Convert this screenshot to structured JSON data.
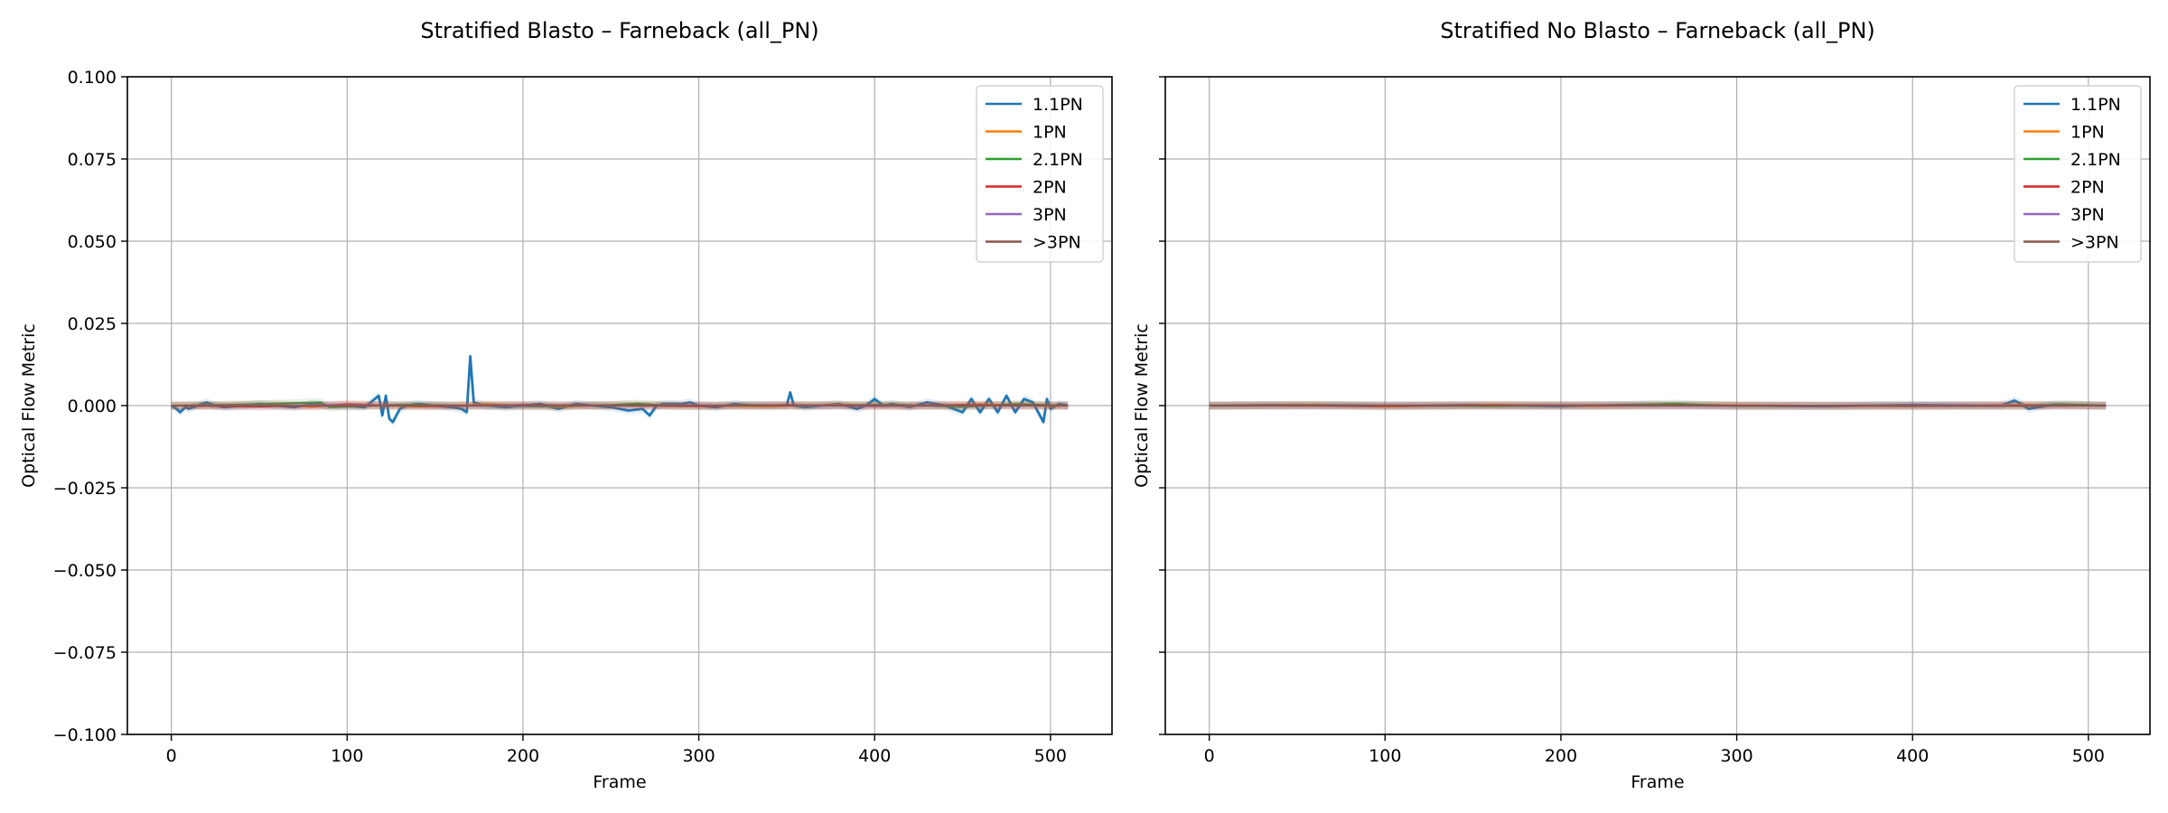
{
  "chart_data": [
    {
      "type": "line",
      "title": "Stratified Blasto – Farneback (all_PN)",
      "xlabel": "Frame",
      "ylabel": "Optical Flow Metric",
      "xlim": [
        -25,
        535
      ],
      "ylim": [
        -0.1,
        0.1
      ],
      "xticks": [
        0,
        100,
        200,
        300,
        400,
        500
      ],
      "xtick_labels": [
        "0",
        "100",
        "200",
        "300",
        "400",
        "500"
      ],
      "yticks": [
        -0.1,
        -0.075,
        -0.05,
        -0.025,
        0.0,
        0.025,
        0.05,
        0.075,
        0.1
      ],
      "ytick_labels": [
        "−0.100",
        "−0.075",
        "−0.050",
        "−0.025",
        "0.000",
        "0.025",
        "0.050",
        "0.075",
        "0.100"
      ],
      "grid": true,
      "legend_position": "top-right",
      "series": [
        {
          "name": "1.1PN",
          "color": "#1f77b4",
          "x": [
            0,
            3,
            5,
            8,
            10,
            15,
            20,
            25,
            30,
            40,
            50,
            60,
            70,
            80,
            90,
            100,
            110,
            118,
            120,
            122,
            124,
            126,
            128,
            130,
            134,
            140,
            150,
            160,
            165,
            168,
            170,
            172,
            175,
            180,
            190,
            200,
            210,
            220,
            230,
            240,
            250,
            260,
            268,
            272,
            276,
            280,
            290,
            295,
            300,
            310,
            320,
            330,
            340,
            350,
            352,
            354,
            360,
            370,
            380,
            390,
            395,
            400,
            405,
            410,
            420,
            430,
            440,
            450,
            455,
            460,
            465,
            470,
            475,
            480,
            485,
            490,
            494,
            496,
            498,
            500,
            505,
            510
          ],
          "y": [
            0.0,
            -0.001,
            -0.002,
            -0.0005,
            -0.001,
            0.0,
            0.001,
            0.0,
            -0.0005,
            0.0,
            0.0005,
            0.0,
            -0.0005,
            0.0005,
            0.0,
            0.0,
            -0.0005,
            0.003,
            -0.003,
            0.003,
            -0.004,
            -0.005,
            -0.003,
            -0.001,
            0.0,
            0.0005,
            0.0,
            -0.0005,
            -0.001,
            -0.002,
            0.015,
            0.001,
            0.0005,
            0.0,
            -0.0005,
            0.0,
            0.0005,
            -0.001,
            0.0005,
            0.0,
            -0.0005,
            -0.0015,
            -0.001,
            -0.003,
            0.0,
            0.0005,
            0.0005,
            0.001,
            0.0,
            -0.0005,
            0.0005,
            0.0,
            0.0,
            0.0,
            0.004,
            0.0,
            -0.0005,
            0.0,
            0.0005,
            -0.001,
            0.0,
            0.002,
            0.0,
            0.0005,
            -0.0005,
            0.001,
            0.0,
            -0.002,
            0.002,
            -0.002,
            0.002,
            -0.002,
            0.003,
            -0.002,
            0.002,
            0.001,
            -0.003,
            -0.005,
            0.002,
            -0.001,
            0.0005,
            0.0
          ]
        },
        {
          "name": "1PN",
          "color": "#ff7f0e",
          "x": [
            0,
            60,
            80,
            100,
            140,
            180,
            220,
            260,
            300,
            340,
            380,
            420,
            460,
            500,
            510
          ],
          "y": [
            0.0,
            0.0005,
            -0.0005,
            0.0005,
            -0.0003,
            0.0004,
            -0.0004,
            0.0003,
            0.0,
            -0.0003,
            0.0003,
            -0.0002,
            0.0004,
            -0.0002,
            0.0
          ]
        },
        {
          "name": "2.1PN",
          "color": "#2ca02c",
          "x": [
            0,
            40,
            85,
            90,
            130,
            170,
            210,
            250,
            265,
            290,
            330,
            370,
            410,
            450,
            480,
            510
          ],
          "y": [
            0.0,
            0.0003,
            0.001,
            -0.0005,
            0.0003,
            0.0,
            -0.0003,
            0.0002,
            0.0006,
            -0.0002,
            0.0002,
            0.0,
            0.0003,
            -0.0004,
            0.0005,
            0.0
          ]
        },
        {
          "name": "2PN",
          "color": "#d62728",
          "x": [
            0,
            50,
            100,
            150,
            200,
            250,
            300,
            350,
            400,
            450,
            510
          ],
          "y": [
            0.0,
            -0.0003,
            0.0003,
            -0.0002,
            0.0002,
            0.0,
            -0.0002,
            0.0002,
            -0.0002,
            0.0002,
            0.0
          ]
        },
        {
          "name": "3PN",
          "color": "#9467bd",
          "x": [
            0,
            100,
            200,
            300,
            400,
            510
          ],
          "y": [
            0.0,
            0.0001,
            -0.0001,
            0.0001,
            -0.0001,
            0.0
          ]
        },
        {
          "name": ">3PN",
          "color": "#8c564b",
          "x": [
            0,
            100,
            200,
            300,
            400,
            510
          ],
          "y": [
            0.0,
            -0.0001,
            0.0001,
            0.0,
            0.0001,
            0.0
          ]
        }
      ]
    },
    {
      "type": "line",
      "title": "Stratified No Blasto – Farneback (all_PN)",
      "xlabel": "Frame",
      "ylabel": "Optical Flow Metric",
      "xlim": [
        -25,
        535
      ],
      "ylim": [
        -0.1,
        0.1
      ],
      "xticks": [
        0,
        100,
        200,
        300,
        400,
        500
      ],
      "xtick_labels": [
        "0",
        "100",
        "200",
        "300",
        "400",
        "500"
      ],
      "yticks": [
        -0.1,
        -0.075,
        -0.05,
        -0.025,
        0.0,
        0.025,
        0.05,
        0.075,
        0.1
      ],
      "ytick_labels": [
        "",
        "",
        "",
        "",
        "",
        "",
        "",
        "",
        ""
      ],
      "grid": true,
      "legend_position": "top-right",
      "series": [
        {
          "name": "1.1PN",
          "color": "#1f77b4",
          "x": [
            0,
            50,
            100,
            150,
            200,
            250,
            300,
            350,
            400,
            450,
            458,
            462,
            466,
            480,
            510
          ],
          "y": [
            0.0,
            0.0002,
            -0.0002,
            0.0002,
            -0.0002,
            0.0003,
            0.0,
            -0.0002,
            0.0002,
            0.0,
            0.0015,
            0.0005,
            -0.001,
            0.0003,
            0.0
          ]
        },
        {
          "name": "1PN",
          "color": "#ff7f0e",
          "x": [
            0,
            60,
            100,
            160,
            220,
            280,
            340,
            400,
            460,
            510
          ],
          "y": [
            0.0,
            0.0003,
            -0.0003,
            0.0003,
            -0.0002,
            0.0002,
            0.0,
            -0.0002,
            0.0003,
            0.0
          ]
        },
        {
          "name": "2.1PN",
          "color": "#2ca02c",
          "x": [
            0,
            80,
            160,
            240,
            265,
            300,
            380,
            460,
            485,
            510
          ],
          "y": [
            0.0,
            0.0002,
            -0.0002,
            0.0002,
            0.0006,
            -0.0002,
            0.0001,
            -0.0001,
            0.0004,
            0.0
          ]
        },
        {
          "name": "2PN",
          "color": "#d62728",
          "x": [
            0,
            100,
            200,
            300,
            400,
            510
          ],
          "y": [
            0.0,
            -0.0001,
            0.0001,
            0.0,
            -0.0001,
            0.0
          ]
        },
        {
          "name": "3PN",
          "color": "#9467bd",
          "x": [
            0,
            100,
            200,
            300,
            400,
            510
          ],
          "y": [
            0.0,
            0.0001,
            0.0,
            -0.0001,
            0.0001,
            0.0
          ]
        },
        {
          "name": ">3PN",
          "color": "#8c564b",
          "x": [
            0,
            100,
            200,
            300,
            400,
            510
          ],
          "y": [
            0.0,
            0.0,
            0.0001,
            0.0,
            -0.0001,
            0.0
          ]
        }
      ]
    }
  ]
}
